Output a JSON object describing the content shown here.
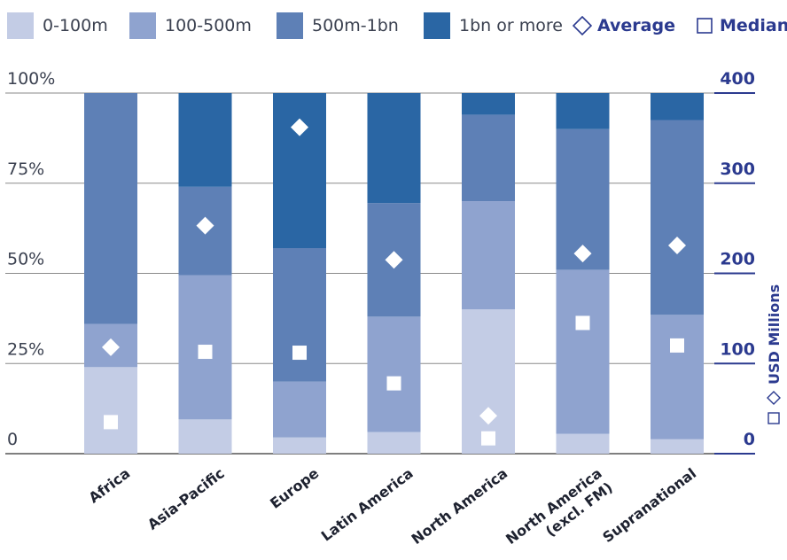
{
  "legend": {
    "items": [
      {
        "label": "0-100m",
        "color": "#c3cce5"
      },
      {
        "label": "100-500m",
        "color": "#8fa3cf"
      },
      {
        "label": "500m-1bn",
        "color": "#5e80b6"
      },
      {
        "label": "1bn or more",
        "color": "#2a66a4"
      }
    ],
    "average_label": "Average",
    "median_label": "Median"
  },
  "chart_data": {
    "type": "bar",
    "stacked": true,
    "categories": [
      "Africa",
      "Asia-Pacific",
      "Europe",
      "Latin America",
      "North America",
      "North America (excl. FM)",
      "Supranational"
    ],
    "series": [
      {
        "name": "0-100m",
        "values": [
          24,
          9.5,
          4.5,
          6,
          40,
          5.5,
          4
        ]
      },
      {
        "name": "100-500m",
        "values": [
          12,
          40,
          15.5,
          32,
          30,
          45.5,
          34.5
        ]
      },
      {
        "name": "500m-1bn",
        "values": [
          64,
          24.5,
          37,
          31.5,
          24,
          39,
          54
        ]
      },
      {
        "name": "1bn or more",
        "values": [
          0,
          26,
          43,
          30.5,
          6,
          10,
          7.5
        ]
      }
    ],
    "average": [
      118,
      253,
      362,
      215,
      42,
      222,
      231
    ],
    "median": [
      35,
      113,
      112,
      78,
      17,
      145,
      120
    ],
    "y_left": {
      "ticks": [
        "0",
        "25%",
        "50%",
        "75%",
        "100%"
      ],
      "range": [
        0,
        100
      ]
    },
    "y_right": {
      "ticks": [
        "0",
        "100",
        "200",
        "300",
        "400"
      ],
      "range": [
        0,
        400
      ],
      "label": "USD Millions"
    },
    "colors": {
      "average_marker": "#ffffff",
      "median_marker": "#ffffff",
      "right_axis": "#2b3a8f",
      "grid": "#8a8a8a"
    }
  }
}
